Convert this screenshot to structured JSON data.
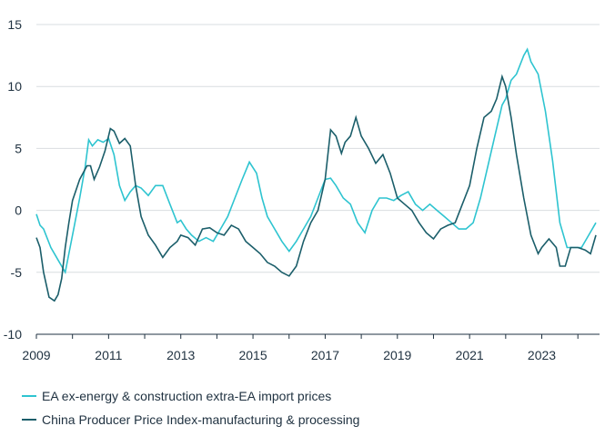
{
  "chart_data": {
    "type": "line",
    "title": "",
    "xlabel": "",
    "ylabel": "",
    "xlim": [
      2009,
      2024.6
    ],
    "ylim": [
      -10,
      15
    ],
    "grid": "horizontal",
    "x_ticks": [
      "2009",
      "2011",
      "2013",
      "2015",
      "2017",
      "2019",
      "2021",
      "2023"
    ],
    "y_ticks": [
      "15",
      "10",
      "5",
      "0",
      "-5",
      "-10"
    ],
    "y_tick_values": [
      15,
      10,
      5,
      0,
      -5,
      -10
    ],
    "legend_position": "bottom-left",
    "series": [
      {
        "name": "EA ex-energy & construction extra-EA import prices",
        "color": "#2ec4d0",
        "x": [
          2009.0,
          2009.1,
          2009.2,
          2009.4,
          2009.6,
          2009.8,
          2010.0,
          2010.2,
          2010.35,
          2010.45,
          2010.55,
          2010.7,
          2010.85,
          2011.0,
          2011.15,
          2011.3,
          2011.45,
          2011.6,
          2011.75,
          2011.9,
          2012.1,
          2012.3,
          2012.5,
          2012.7,
          2012.9,
          2013.0,
          2013.15,
          2013.3,
          2013.5,
          2013.7,
          2013.9,
          2014.1,
          2014.3,
          2014.5,
          2014.7,
          2014.9,
          2015.1,
          2015.25,
          2015.4,
          2015.6,
          2015.8,
          2016.0,
          2016.2,
          2016.4,
          2016.6,
          2016.8,
          2017.0,
          2017.15,
          2017.3,
          2017.5,
          2017.7,
          2017.9,
          2018.1,
          2018.3,
          2018.5,
          2018.7,
          2018.9,
          2019.1,
          2019.3,
          2019.5,
          2019.7,
          2019.9,
          2020.1,
          2020.3,
          2020.5,
          2020.7,
          2020.9,
          2021.1,
          2021.3,
          2021.5,
          2021.7,
          2021.9,
          2022.0,
          2022.15,
          2022.3,
          2022.5,
          2022.6,
          2022.7,
          2022.9,
          2023.1,
          2023.3,
          2023.5,
          2023.7,
          2023.9,
          2024.1,
          2024.3,
          2024.5
        ],
        "y": [
          -0.3,
          -1.2,
          -1.5,
          -3.0,
          -4.0,
          -5.0,
          -2.0,
          1.0,
          3.5,
          5.7,
          5.2,
          5.7,
          5.5,
          5.8,
          4.5,
          2.0,
          0.8,
          1.5,
          2.0,
          1.8,
          1.2,
          2.0,
          2.0,
          0.5,
          -1.0,
          -0.8,
          -1.5,
          -2.0,
          -2.5,
          -2.2,
          -2.5,
          -1.5,
          -0.5,
          1.0,
          2.5,
          3.9,
          3.0,
          1.0,
          -0.5,
          -1.5,
          -2.5,
          -3.3,
          -2.5,
          -1.5,
          -0.5,
          1.0,
          2.5,
          2.6,
          2.0,
          1.0,
          0.5,
          -1.0,
          -1.8,
          0.0,
          1.0,
          1.0,
          0.8,
          1.2,
          1.5,
          0.5,
          0.0,
          0.5,
          0.0,
          -0.5,
          -1.0,
          -1.5,
          -1.5,
          -1.0,
          1.0,
          3.5,
          6.0,
          8.5,
          9.0,
          10.5,
          11.0,
          12.5,
          13.0,
          12.0,
          11.0,
          8.0,
          4.0,
          -1.0,
          -3.0,
          -3.0,
          -3.0,
          -2.0,
          -1.0
        ]
      },
      {
        "name": "China Producer Price Index-manufacturing & processing",
        "color": "#1b5e6a",
        "x": [
          2009.0,
          2009.1,
          2009.2,
          2009.35,
          2009.5,
          2009.6,
          2009.7,
          2009.8,
          2009.9,
          2010.0,
          2010.2,
          2010.4,
          2010.5,
          2010.6,
          2010.75,
          2010.9,
          2011.05,
          2011.15,
          2011.3,
          2011.45,
          2011.6,
          2011.75,
          2011.9,
          2012.1,
          2012.3,
          2012.5,
          2012.7,
          2012.9,
          2013.0,
          2013.2,
          2013.4,
          2013.6,
          2013.8,
          2014.0,
          2014.2,
          2014.4,
          2014.6,
          2014.8,
          2015.0,
          2015.2,
          2015.4,
          2015.6,
          2015.8,
          2016.0,
          2016.2,
          2016.4,
          2016.6,
          2016.8,
          2017.0,
          2017.15,
          2017.3,
          2017.45,
          2017.55,
          2017.7,
          2017.85,
          2018.0,
          2018.2,
          2018.4,
          2018.6,
          2018.8,
          2019.0,
          2019.2,
          2019.4,
          2019.6,
          2019.8,
          2020.0,
          2020.2,
          2020.4,
          2020.6,
          2020.8,
          2021.0,
          2021.2,
          2021.4,
          2021.6,
          2021.75,
          2021.9,
          2022.0,
          2022.15,
          2022.3,
          2022.5,
          2022.7,
          2022.9,
          2023.0,
          2023.2,
          2023.4,
          2023.5,
          2023.65,
          2023.8,
          2024.0,
          2024.2,
          2024.35,
          2024.5
        ],
        "y": [
          -2.2,
          -3.0,
          -5.0,
          -7.0,
          -7.3,
          -6.8,
          -5.5,
          -3.0,
          -1.0,
          0.8,
          2.5,
          3.6,
          3.6,
          2.5,
          3.5,
          4.8,
          6.6,
          6.4,
          5.4,
          5.8,
          5.2,
          2.0,
          -0.5,
          -2.0,
          -2.8,
          -3.8,
          -3.0,
          -2.5,
          -2.0,
          -2.2,
          -2.8,
          -1.5,
          -1.4,
          -1.8,
          -2.0,
          -1.2,
          -1.5,
          -2.5,
          -3.0,
          -3.5,
          -4.2,
          -4.5,
          -5.0,
          -5.3,
          -4.5,
          -2.5,
          -1.0,
          0.0,
          2.5,
          6.5,
          6.0,
          4.6,
          5.5,
          6.0,
          7.5,
          6.0,
          5.0,
          3.8,
          4.5,
          3.0,
          1.0,
          0.5,
          0.0,
          -1.0,
          -1.8,
          -2.3,
          -1.5,
          -1.2,
          -1.0,
          0.5,
          2.0,
          5.0,
          7.5,
          8.0,
          9.0,
          10.8,
          10.0,
          7.5,
          4.5,
          1.0,
          -2.0,
          -3.5,
          -3.0,
          -2.3,
          -3.0,
          -4.5,
          -4.5,
          -3.0,
          -3.0,
          -3.2,
          -3.5,
          -2.0
        ]
      }
    ]
  }
}
